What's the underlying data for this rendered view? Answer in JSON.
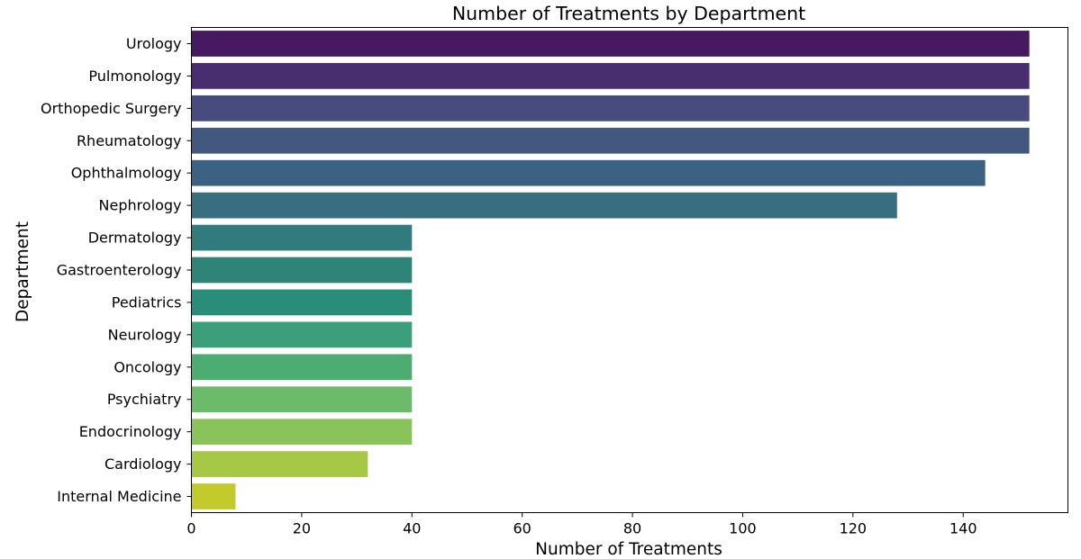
{
  "chart_data": {
    "type": "bar",
    "orientation": "horizontal",
    "title": "Number of Treatments by Department",
    "xlabel": "Number of Treatments",
    "ylabel": "Department",
    "categories": [
      "Urology",
      "Pulmonology",
      "Orthopedic Surgery",
      "Rheumatology",
      "Ophthalmology",
      "Nephrology",
      "Dermatology",
      "Gastroenterology",
      "Pediatrics",
      "Neurology",
      "Oncology",
      "Psychiatry",
      "Endocrinology",
      "Cardiology",
      "Internal Medicine"
    ],
    "values": [
      152,
      152,
      152,
      152,
      144,
      128,
      40,
      40,
      40,
      40,
      40,
      40,
      40,
      32,
      8
    ],
    "colors": [
      "#47195f",
      "#482d6f",
      "#474b7d",
      "#42587f",
      "#3c6283",
      "#386e80",
      "#317a7d",
      "#2e8477",
      "#2a8d7a",
      "#3a9f7a",
      "#4dac72",
      "#6bbb6a",
      "#8bc35b",
      "#a7c746",
      "#c2cb2b"
    ],
    "xlim": [
      0,
      159
    ],
    "xticks": [
      0,
      20,
      40,
      60,
      80,
      100,
      120,
      140
    ],
    "grid": false,
    "legend": "none"
  }
}
